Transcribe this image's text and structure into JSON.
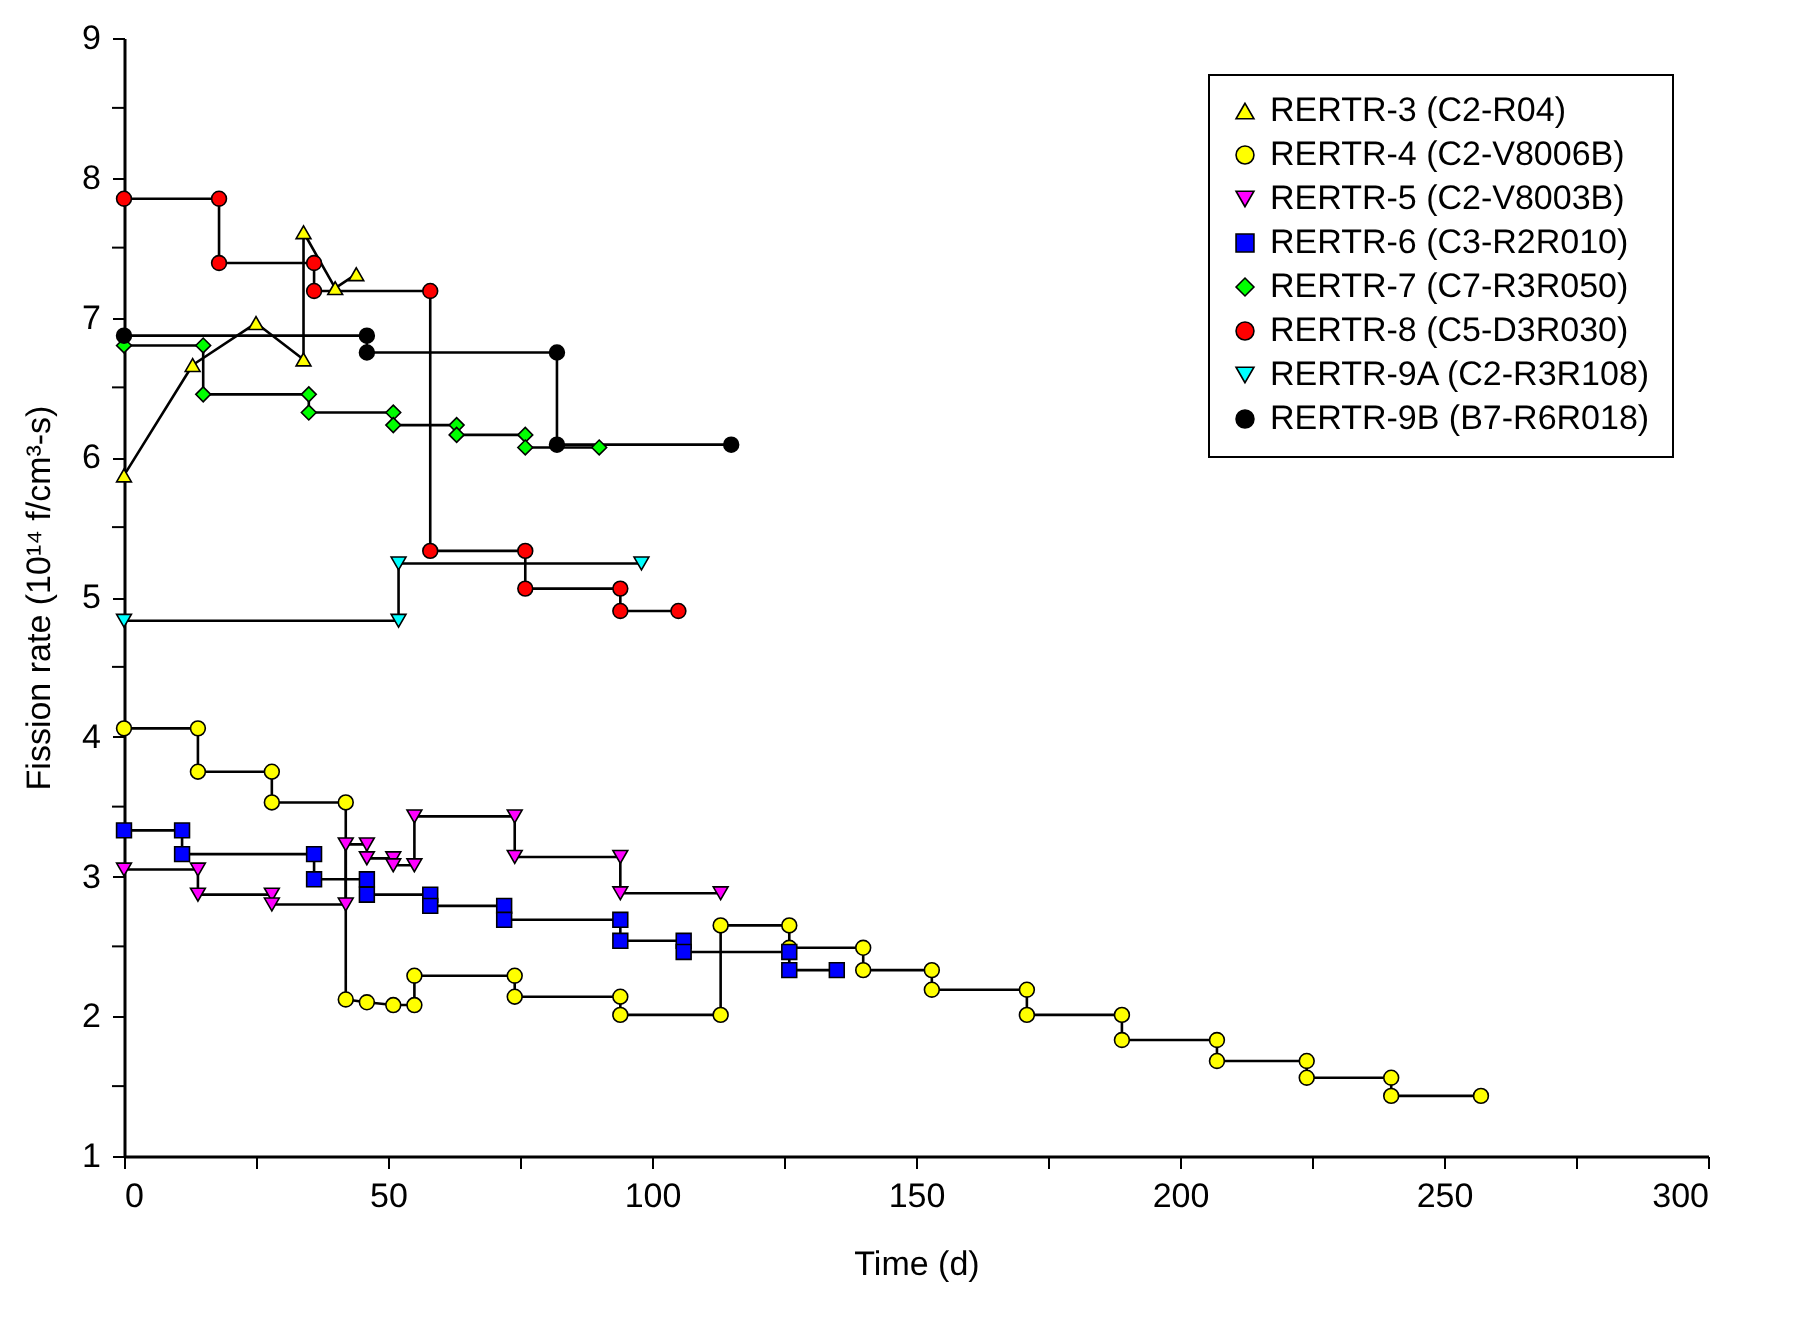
{
  "chart_data": {
    "type": "line",
    "xlabel": "Time (d)",
    "ylabel": "Fission rate (10¹⁴ f/cm³-s)",
    "xlim": [
      0,
      300
    ],
    "ylim": [
      1,
      9
    ],
    "xticks": [
      0,
      {
        "value": 25,
        "label": null
      },
      50,
      {
        "value": 75,
        "label": null
      },
      100,
      {
        "value": 125,
        "label": null
      },
      150,
      {
        "value": 175,
        "label": null
      },
      200,
      {
        "value": 225,
        "label": null
      },
      250,
      {
        "value": 275,
        "label": null
      },
      300
    ],
    "yticks": [
      1,
      {
        "value": 1.5,
        "label": null
      },
      2,
      {
        "value": 2.5,
        "label": null
      },
      3,
      {
        "value": 3.5,
        "label": null
      },
      4,
      {
        "value": 4.5,
        "label": null
      },
      5,
      {
        "value": 5.5,
        "label": null
      },
      6,
      {
        "value": 6.5,
        "label": null
      },
      7,
      {
        "value": 7.5,
        "label": null
      },
      8,
      {
        "value": 8.5,
        "label": null
      },
      9
    ],
    "grid": false,
    "legend": "top right",
    "line_style": "solid",
    "series": [
      {
        "name": "RERTR-3 (C2-R04)",
        "color": "#ffff00",
        "marker": "triangle",
        "x": [
          0,
          13,
          25,
          34,
          34,
          40,
          44
        ],
        "values": [
          5.87,
          6.66,
          6.96,
          6.7,
          7.61,
          7.21,
          7.31
        ]
      },
      {
        "name": "RERTR-4 (C2-V8006B)",
        "color": "#ffff00",
        "marker": "circle",
        "x": [
          0,
          14,
          14,
          28,
          28,
          42,
          42,
          46,
          51,
          55,
          55,
          74,
          74,
          94,
          94,
          113,
          113,
          126,
          126,
          140,
          140,
          153,
          153,
          171,
          171,
          189,
          189,
          207,
          207,
          224,
          224,
          240,
          240,
          257
        ],
        "values": [
          4.06,
          4.06,
          3.75,
          3.75,
          3.53,
          3.53,
          2.12,
          2.1,
          2.08,
          2.08,
          2.29,
          2.29,
          2.14,
          2.14,
          2.01,
          2.01,
          2.65,
          2.65,
          2.49,
          2.49,
          2.33,
          2.33,
          2.19,
          2.19,
          2.01,
          2.01,
          1.83,
          1.83,
          1.68,
          1.68,
          1.56,
          1.56,
          1.43,
          1.43
        ]
      },
      {
        "name": "RERTR-5 (C2-V8003B)",
        "color": "#ff00ff",
        "marker": "triangle-down",
        "x": [
          0,
          14,
          14,
          28,
          28,
          42,
          42,
          46,
          46,
          51,
          51,
          55,
          55,
          74,
          74,
          94,
          94,
          113
        ],
        "values": [
          3.05,
          3.05,
          2.87,
          2.87,
          2.8,
          2.8,
          3.23,
          3.23,
          3.13,
          3.13,
          3.08,
          3.08,
          3.43,
          3.43,
          3.14,
          3.14,
          2.88,
          2.88
        ]
      },
      {
        "name": "RERTR-6 (C3-R2R010)",
        "color": "#0000ff",
        "marker": "square",
        "x": [
          0,
          11,
          11,
          36,
          36,
          46,
          46,
          58,
          58,
          72,
          72,
          94,
          94,
          106,
          106,
          126,
          126,
          135
        ],
        "values": [
          3.33,
          3.33,
          3.16,
          3.16,
          2.98,
          2.98,
          2.87,
          2.87,
          2.79,
          2.79,
          2.69,
          2.69,
          2.54,
          2.54,
          2.46,
          2.46,
          2.33,
          2.33
        ]
      },
      {
        "name": "RERTR-7 (C7-R3R050)",
        "color": "#00ff00",
        "marker": "diamond",
        "x": [
          0,
          15,
          15,
          35,
          35,
          51,
          51,
          63,
          63,
          76,
          76,
          90
        ],
        "values": [
          6.8,
          6.8,
          6.45,
          6.45,
          6.32,
          6.32,
          6.23,
          6.23,
          6.16,
          6.16,
          6.07,
          6.07
        ]
      },
      {
        "name": "RERTR-8 (C5-D3R030)",
        "color": "#ff0000",
        "marker": "circle",
        "x": [
          0,
          18,
          18,
          36,
          36,
          58,
          58,
          76,
          76,
          94,
          94,
          105
        ],
        "values": [
          7.85,
          7.85,
          7.39,
          7.39,
          7.19,
          7.19,
          5.33,
          5.33,
          5.06,
          5.06,
          4.9,
          4.9
        ]
      },
      {
        "name": "RERTR-9A (C2-R3R108)",
        "color": "#00ffff",
        "marker": "triangle-down",
        "x": [
          0,
          52,
          52,
          98
        ],
        "values": [
          4.83,
          4.83,
          5.24,
          5.24
        ]
      },
      {
        "name": "RERTR-9B (B7-R6R018)",
        "color": "#000000",
        "marker": "circle",
        "x": [
          0,
          46,
          46,
          82,
          82,
          115
        ],
        "values": [
          6.87,
          6.87,
          6.75,
          6.75,
          6.09,
          6.09
        ]
      }
    ]
  }
}
